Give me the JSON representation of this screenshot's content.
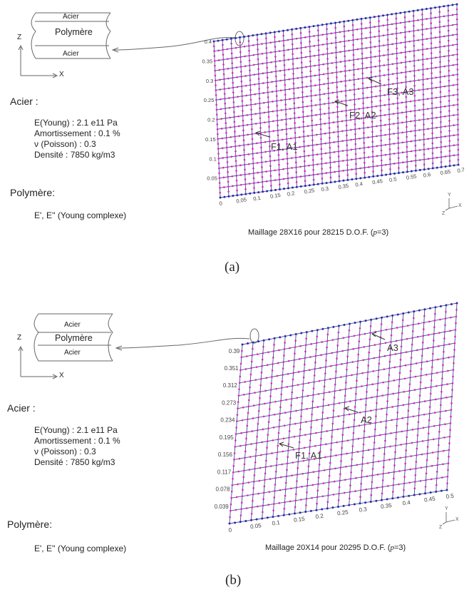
{
  "panels": [
    {
      "id": "a",
      "layers": [
        "Acier",
        "Polymère",
        "Acier"
      ],
      "axes": {
        "z": "Z",
        "x": "X"
      },
      "steel_title": "Acier :",
      "steel_props": [
        "E(Young) : 2.1 e11 Pa",
        "Amortissement : 0.1 %",
        "ν (Poisson) : 0.3",
        "Densité : 7850 kg/m3"
      ],
      "polymer_title": "Polymère:",
      "polymer_props": "E', E'' (Young complexe)",
      "mesh": {
        "cols": 28,
        "rows": 16,
        "x_ticks": [
          "0",
          "0.05",
          "0.1",
          "0.15",
          "0.2",
          "0.25",
          "0.3",
          "0.35",
          "0.4",
          "0.45",
          "0.5",
          "0.55",
          "0.6",
          "0.65",
          "0.7"
        ],
        "y_ticks": [
          "0.05",
          "0.1",
          "0.15",
          "0.2",
          "0.25",
          "0.3",
          "0.35",
          "0.4"
        ],
        "annotations": [
          "F1, A1",
          "F2, A2",
          "F3, A3"
        ],
        "triad": {
          "y": "Y",
          "z": "Z",
          "x": "X"
        }
      },
      "caption": {
        "prefix": "Maillage 28X16 pour 28215 D.O.F. (",
        "p": "p",
        "suffix": "=3)"
      },
      "fig_label": "(a)"
    },
    {
      "id": "b",
      "layers": [
        "Acier",
        "Polymère",
        "Acier"
      ],
      "axes": {
        "z": "Z",
        "x": "X"
      },
      "steel_title": "Acier :",
      "steel_props": [
        "E(Young) : 2.1 e11 Pa",
        "Amortissement : 0.1 %",
        "ν (Poisson) : 0.3",
        "Densité : 7850 kg/m3"
      ],
      "polymer_title": "Polymère:",
      "polymer_props": "E', E'' (Young complexe)",
      "mesh": {
        "cols": 20,
        "rows": 14,
        "x_ticks": [
          "0",
          "0.05",
          "0.1",
          "0.15",
          "0.2",
          "0.25",
          "0.3",
          "0.35",
          "0.4",
          "0.45",
          "0.5"
        ],
        "y_ticks": [
          "0.039",
          "0.078",
          "0.117",
          "0.156",
          "0.195",
          "0.234",
          "0.273",
          "0.312",
          "0.351",
          "0.39"
        ],
        "annotations": [
          "F1, A1",
          "A2",
          "A3"
        ],
        "triad": {
          "y": "Y",
          "z": "Z",
          "x": "X"
        }
      },
      "caption": {
        "prefix": "Maillage 20X14 pour 20295 D.O.F. (",
        "p": "p",
        "suffix": "=3)"
      },
      "fig_label": "(b)"
    }
  ],
  "colors": {
    "grid": "#4a4a90",
    "node": "#e020c8",
    "edge_node": "#2a2ab0",
    "ink": "#333333"
  }
}
